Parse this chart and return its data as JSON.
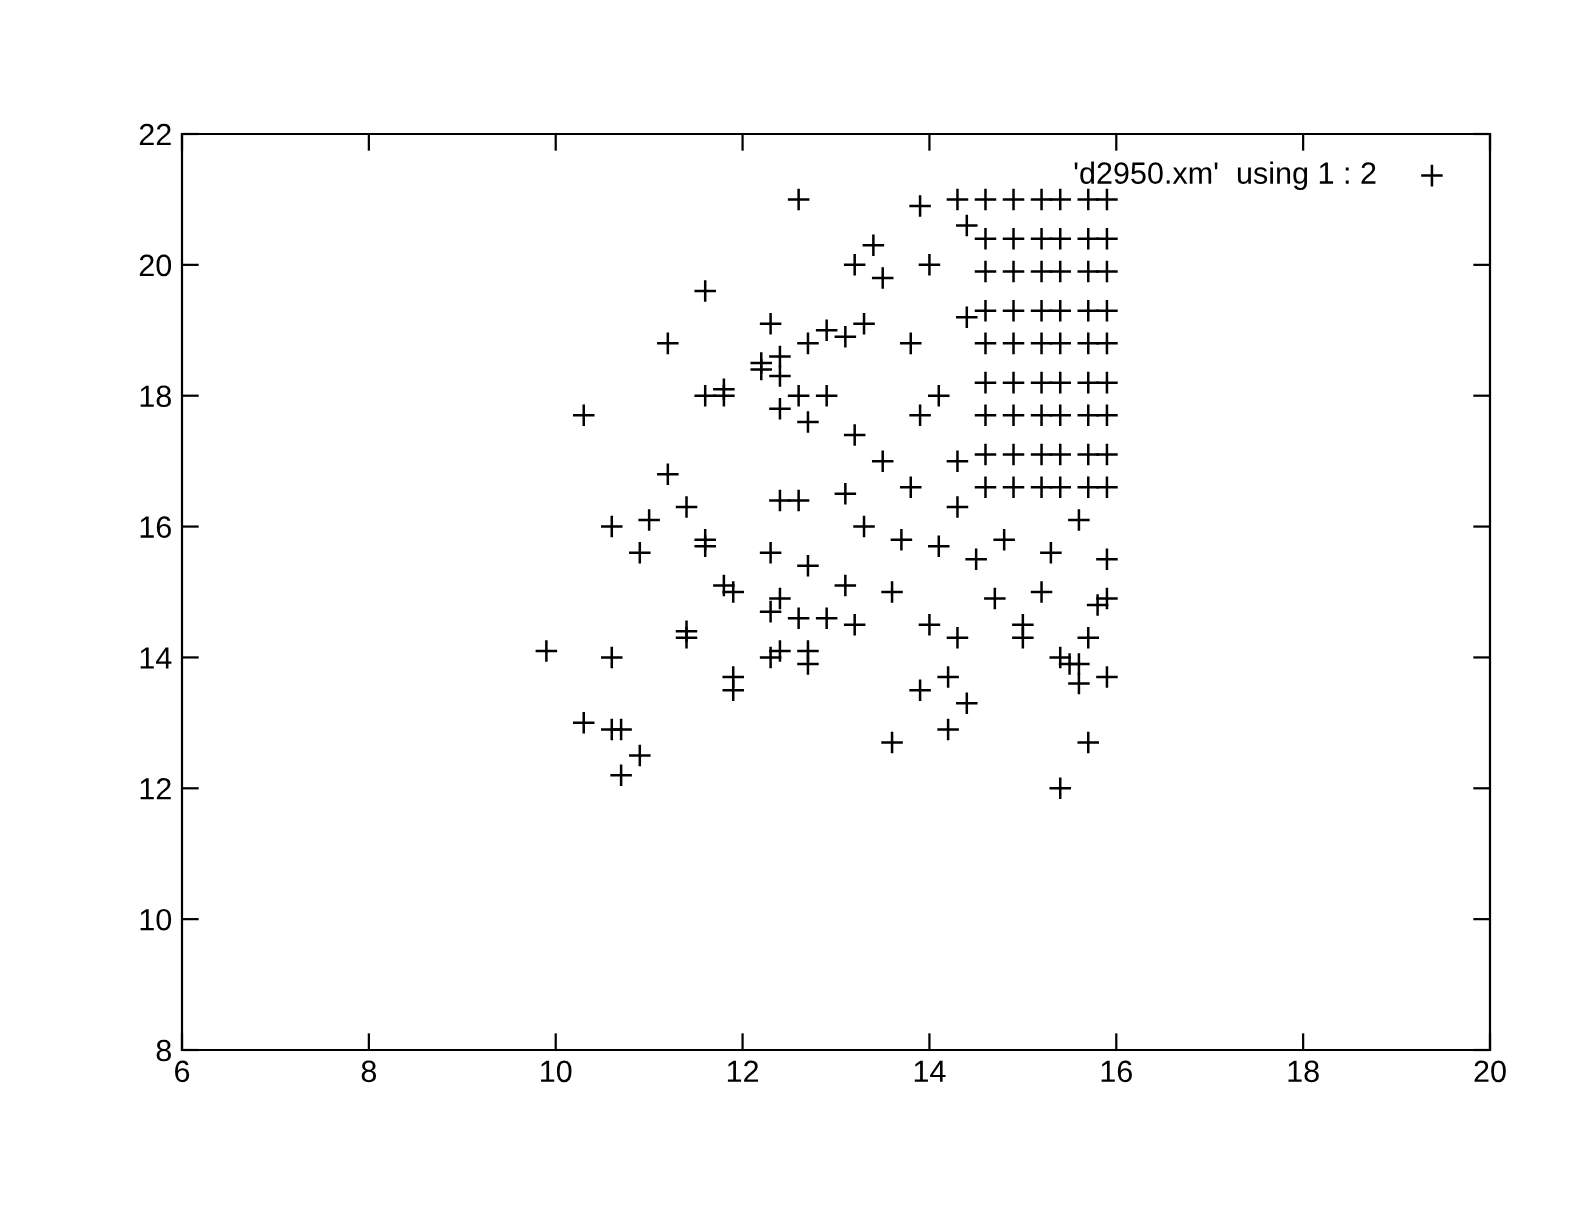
{
  "chart_data": {
    "type": "scatter",
    "xlim": [
      6,
      20
    ],
    "ylim": [
      8,
      22
    ],
    "xticks": [
      6,
      8,
      10,
      12,
      14,
      16,
      18,
      20
    ],
    "yticks": [
      8,
      10,
      12,
      14,
      16,
      18,
      20,
      22
    ],
    "grid": false,
    "legend": "top right",
    "marker": "cross",
    "series": [
      {
        "name": "'d2950.xm'  using 1 : 2",
        "color": "#000000",
        "x": [
          9.9,
          10.3,
          10.3,
          10.6,
          10.6,
          10.6,
          10.7,
          10.7,
          10.9,
          10.9,
          11.0,
          11.2,
          11.2,
          11.4,
          11.4,
          11.4,
          11.6,
          11.6,
          11.6,
          11.6,
          11.8,
          11.8,
          11.8,
          11.9,
          11.9,
          11.9,
          12.2,
          12.2,
          12.3,
          12.3,
          12.3,
          12.3,
          12.4,
          12.4,
          12.4,
          12.4,
          12.4,
          12.4,
          12.6,
          12.6,
          12.6,
          12.6,
          12.7,
          12.7,
          12.7,
          12.7,
          12.7,
          12.9,
          12.9,
          12.9,
          13.1,
          13.1,
          13.1,
          13.2,
          13.2,
          13.2,
          13.3,
          13.3,
          13.4,
          13.5,
          13.5,
          13.6,
          13.6,
          13.8,
          13.8,
          13.9,
          13.9,
          14.0,
          14.0,
          14.2,
          14.2,
          14.3,
          14.4,
          14.3,
          14.1,
          14.1,
          14.5,
          14.7,
          15.0,
          15.0,
          15.2,
          15.4,
          15.5,
          15.4,
          15.6,
          15.6,
          15.7,
          15.7,
          15.8,
          15.9,
          15.9,
          15.9,
          14.8,
          15.3,
          15.6,
          14.3,
          14.4,
          13.7,
          13.9,
          14.3,
          14.4,
          14.6,
          14.6,
          14.6,
          14.6,
          14.6,
          14.6,
          14.6,
          14.6,
          14.6,
          14.9,
          14.9,
          14.9,
          14.9,
          14.9,
          14.9,
          14.9,
          14.9,
          14.9,
          15.2,
          15.2,
          15.2,
          15.2,
          15.2,
          15.2,
          15.2,
          15.2,
          15.2,
          15.4,
          15.4,
          15.4,
          15.4,
          15.4,
          15.4,
          15.4,
          15.4,
          15.4,
          15.7,
          15.7,
          15.7,
          15.7,
          15.7,
          15.7,
          15.7,
          15.7,
          15.7,
          15.9,
          15.9,
          15.9,
          15.9,
          15.9,
          15.9,
          15.9,
          15.9,
          15.9
        ],
        "values": [
          14.1,
          17.7,
          13.0,
          16.0,
          14.0,
          12.9,
          12.9,
          12.2,
          12.5,
          15.6,
          16.1,
          16.8,
          18.8,
          16.3,
          14.4,
          14.3,
          19.6,
          18.0,
          15.8,
          15.7,
          18.1,
          18.0,
          15.1,
          15.0,
          13.7,
          13.5,
          18.5,
          18.4,
          19.1,
          15.6,
          14.7,
          14.0,
          18.6,
          18.3,
          17.8,
          16.4,
          14.9,
          14.1,
          21.0,
          18.0,
          16.4,
          14.6,
          18.8,
          17.6,
          15.4,
          14.1,
          13.9,
          19.0,
          18.0,
          14.6,
          18.9,
          16.5,
          15.1,
          20.0,
          17.4,
          14.5,
          19.1,
          16.0,
          20.3,
          19.8,
          17.0,
          12.7,
          15.0,
          18.8,
          16.6,
          20.9,
          13.5,
          20.0,
          14.5,
          12.9,
          13.7,
          14.3,
          13.3,
          17.0,
          15.7,
          18.0,
          15.5,
          14.9,
          14.5,
          14.3,
          15.0,
          14.0,
          13.9,
          12.0,
          13.6,
          13.9,
          12.7,
          14.3,
          14.8,
          13.7,
          14.9,
          15.5,
          15.8,
          15.6,
          16.1,
          16.3,
          19.2,
          15.8,
          17.7,
          21.0,
          20.6,
          16.6,
          17.1,
          17.7,
          18.2,
          18.8,
          19.3,
          19.9,
          20.4,
          21.0,
          16.6,
          17.1,
          17.7,
          18.2,
          18.8,
          19.3,
          19.9,
          20.4,
          21.0,
          16.6,
          17.1,
          17.7,
          18.2,
          18.8,
          19.3,
          19.9,
          20.4,
          21.0,
          16.6,
          17.1,
          17.7,
          18.2,
          18.8,
          19.3,
          19.9,
          20.4,
          21.0,
          16.6,
          17.1,
          17.7,
          18.2,
          18.8,
          19.3,
          19.9,
          20.4,
          21.0,
          16.6,
          17.1,
          17.7,
          18.2,
          18.8,
          19.3,
          19.9,
          20.4,
          21.0
        ]
      }
    ]
  }
}
